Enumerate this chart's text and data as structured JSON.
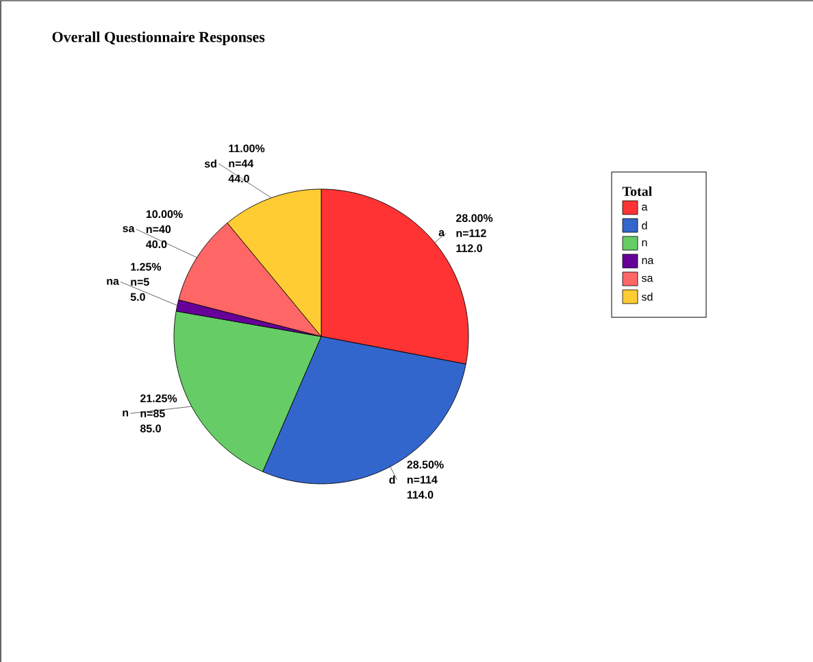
{
  "chart_data": {
    "type": "pie",
    "title": "Overall Questionnaire Responses",
    "legend_title": "Total",
    "legend": "right",
    "categories": [
      "a",
      "d",
      "n",
      "na",
      "sa",
      "sd"
    ],
    "values": [
      112,
      114,
      85,
      5,
      40,
      44
    ],
    "colors": [
      "#ff3333",
      "#3366cc",
      "#66cc66",
      "#660099",
      "#ff6666",
      "#ffcc33"
    ],
    "value_labels": [
      "112.0",
      "114.0",
      "85.0",
      "5.0",
      "40.0",
      "44.0"
    ],
    "annotations": [
      "28.00%",
      "n=112",
      "28.50%",
      "n=114",
      "21.25%",
      "n=85",
      "1.25%",
      "n=5",
      "10.00%",
      "n=40",
      "11.00%",
      "n=44"
    ]
  }
}
